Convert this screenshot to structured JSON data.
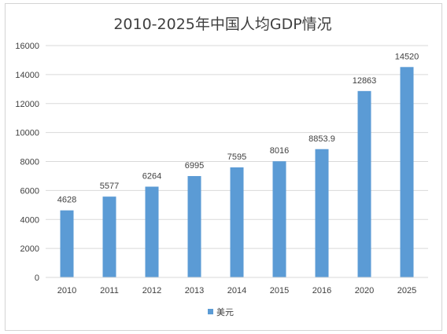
{
  "chart_data": {
    "type": "bar",
    "title": "2010-2025年中国人均GDP情况",
    "xlabel": "",
    "ylabel": "",
    "categories": [
      "2010",
      "2011",
      "2012",
      "2013",
      "2014",
      "2015",
      "2016",
      "2020",
      "2025"
    ],
    "series": [
      {
        "name": "美元",
        "values": [
          4628,
          5577,
          6264,
          6995,
          7595,
          8016,
          8853.9,
          12863,
          14520
        ],
        "labels": [
          "4628",
          "5577",
          "6264",
          "6995",
          "7595",
          "8016",
          "8853.9",
          "12863",
          "14520"
        ],
        "color": "#5b9bd5"
      }
    ],
    "ylim": [
      0,
      16000
    ],
    "yticks": [
      "0",
      "2000",
      "4000",
      "6000",
      "8000",
      "10000",
      "12000",
      "14000",
      "16000"
    ],
    "grid": true,
    "legend": "bottom"
  }
}
